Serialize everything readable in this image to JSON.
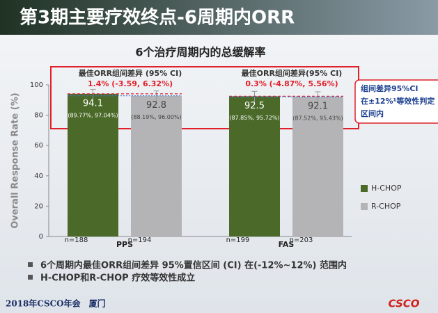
{
  "header": {
    "title": "第3期主要疗效终点-6周期内ORR"
  },
  "chart_data": {
    "type": "bar",
    "title": "6个治疗周期内的总缓解率",
    "y_label": "Overall Response Rate (%)",
    "categories": [
      "PPS",
      "FAS"
    ],
    "series": [
      {
        "name": "H-CHOP",
        "color": "#4b6a29",
        "values": [
          94.1,
          92.5
        ],
        "ci_lower": [
          89.77,
          87.85
        ],
        "ci_upper": [
          97.04,
          95.72
        ],
        "ci_labels": [
          "(89.77%, 97.04%)",
          "(87.85%, 95.72%)"
        ],
        "n_labels": [
          "n=188",
          "n=199"
        ]
      },
      {
        "name": "R-CHOP",
        "color": "#b4b4b6",
        "values": [
          92.8,
          92.1
        ],
        "ci_lower": [
          88.19,
          87.52
        ],
        "ci_upper": [
          96.0,
          95.43
        ],
        "ci_labels": [
          "(88.19%, 96.00%)",
          "(87.52%, 95.43%)"
        ],
        "n_labels": [
          "n=194",
          "n=203"
        ]
      }
    ],
    "ylim": [
      0,
      100
    ],
    "yticks": [
      0,
      20,
      40,
      60,
      80,
      100
    ],
    "legend": "right",
    "annotations": [
      {
        "heading": "最佳ORR组间差异 (95% CI)",
        "text": "1.4% (-3.59, 6.32%)"
      },
      {
        "heading": "最佳ORR组间差异(95% CI)",
        "text": "0.3% (-4.87%, 5.56%)"
      }
    ],
    "callout": [
      "组间差异95%CI",
      "在±12%¹等效性判定",
      "区间内"
    ]
  },
  "bullets": [
    "6个周期内最佳ORR组间差异 95%置信区间 (CI) 在(-12%~12%) 范围内",
    "H-CHOP和R-CHOP 疗效等效性成立"
  ],
  "footer": {
    "text": "2018年CSCO年会　厦门",
    "logo": "CSCO"
  }
}
